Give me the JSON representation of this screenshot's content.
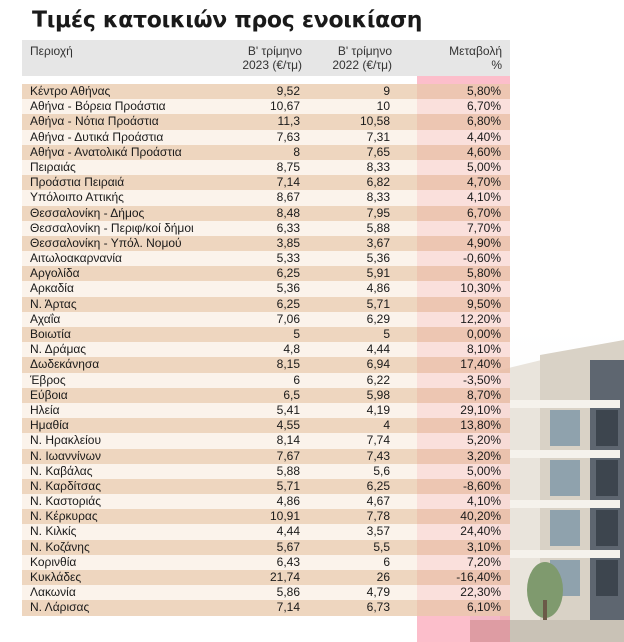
{
  "title": "Τιμές κατοικιών προς ενοικίαση",
  "headers": {
    "region": "Περιοχή",
    "q2023_line1": "Β' τρίμηνο",
    "q2023_line2": "2023 (€/τμ)",
    "q2022_line1": "Β' τρίμηνο",
    "q2022_line2": "2022 (€/τμ)",
    "change_line1": "Μεταβολή",
    "change_line2": "%"
  },
  "rows": [
    {
      "region": "Κέντρο Αθήνας",
      "q2023": "9,52",
      "q2022": "9",
      "change": "5,80%"
    },
    {
      "region": "Αθήνα - Βόρεια Προάστια",
      "q2023": "10,67",
      "q2022": "10",
      "change": "6,70%"
    },
    {
      "region": "Αθήνα - Νότια Προάστια",
      "q2023": "11,3",
      "q2022": "10,58",
      "change": "6,80%"
    },
    {
      "region": "Αθήνα - Δυτικά Προάστια",
      "q2023": "7,63",
      "q2022": "7,31",
      "change": "4,40%"
    },
    {
      "region": "Αθήνα - Ανατολικά Προάστια",
      "q2023": "8",
      "q2022": "7,65",
      "change": "4,60%"
    },
    {
      "region": "Πειραιάς",
      "q2023": "8,75",
      "q2022": "8,33",
      "change": "5,00%"
    },
    {
      "region": "Προάστια Πειραιά",
      "q2023": "7,14",
      "q2022": "6,82",
      "change": "4,70%"
    },
    {
      "region": "Υπόλοιπο Αττικής",
      "q2023": "8,67",
      "q2022": "8,33",
      "change": "4,10%"
    },
    {
      "region": "Θεσσαλονίκη - Δήμος",
      "q2023": "8,48",
      "q2022": "7,95",
      "change": "6,70%"
    },
    {
      "region": "Θεσσαλονίκη - Περιφ/κοί δήμοι",
      "q2023": "6,33",
      "q2022": "5,88",
      "change": "7,70%"
    },
    {
      "region": "Θεσσαλονίκη - Υπόλ. Νομού",
      "q2023": "3,85",
      "q2022": "3,67",
      "change": "4,90%"
    },
    {
      "region": "Αιτωλοακαρνανία",
      "q2023": "5,33",
      "q2022": "5,36",
      "change": "-0,60%"
    },
    {
      "region": "Αργολίδα",
      "q2023": "6,25",
      "q2022": "5,91",
      "change": "5,80%"
    },
    {
      "region": "Αρκαδία",
      "q2023": "5,36",
      "q2022": "4,86",
      "change": "10,30%"
    },
    {
      "region": "Ν. Άρτας",
      "q2023": "6,25",
      "q2022": "5,71",
      "change": "9,50%"
    },
    {
      "region": "Αχαΐα",
      "q2023": "7,06",
      "q2022": "6,29",
      "change": "12,20%"
    },
    {
      "region": "Βοιωτία",
      "q2023": "5",
      "q2022": "5",
      "change": "0,00%"
    },
    {
      "region": "Ν. Δράμας",
      "q2023": "4,8",
      "q2022": "4,44",
      "change": "8,10%"
    },
    {
      "region": "Δωδεκάνησα",
      "q2023": "8,15",
      "q2022": "6,94",
      "change": "17,40%"
    },
    {
      "region": "Έβρος",
      "q2023": "6",
      "q2022": "6,22",
      "change": "-3,50%"
    },
    {
      "region": "Εύβοια",
      "q2023": "6,5",
      "q2022": "5,98",
      "change": "8,70%"
    },
    {
      "region": "Ηλεία",
      "q2023": "5,41",
      "q2022": "4,19",
      "change": "29,10%"
    },
    {
      "region": "Ημαθία",
      "q2023": "4,55",
      "q2022": "4",
      "change": "13,80%"
    },
    {
      "region": "Ν. Ηρακλείου",
      "q2023": "8,14",
      "q2022": "7,74",
      "change": "5,20%"
    },
    {
      "region": "Ν. Ιωαννίνων",
      "q2023": "7,67",
      "q2022": "7,43",
      "change": "3,20%"
    },
    {
      "region": "Ν. Καβάλας",
      "q2023": "5,88",
      "q2022": "5,6",
      "change": "5,00%"
    },
    {
      "region": "Ν. Καρδίτσας",
      "q2023": "5,71",
      "q2022": "6,25",
      "change": "-8,60%"
    },
    {
      "region": "Ν. Καστοριάς",
      "q2023": "4,86",
      "q2022": "4,67",
      "change": "4,10%"
    },
    {
      "region": "Ν. Κέρκυρας",
      "q2023": "10,91",
      "q2022": "7,78",
      "change": "40,20%"
    },
    {
      "region": "Ν. Κιλκίς",
      "q2023": "4,44",
      "q2022": "3,57",
      "change": "24,40%"
    },
    {
      "region": "Ν. Κοζάνης",
      "q2023": "5,67",
      "q2022": "5,5",
      "change": "3,10%"
    },
    {
      "region": "Κορινθία",
      "q2023": "6,43",
      "q2022": "6",
      "change": "7,20%"
    },
    {
      "region": "Κυκλάδες",
      "q2023": "21,74",
      "q2022": "26",
      "change": "-16,40%"
    },
    {
      "region": "Λακωνία",
      "q2023": "5,86",
      "q2022": "4,79",
      "change": "22,30%"
    },
    {
      "region": "Ν. Λάρισας",
      "q2023": "7,14",
      "q2022": "6,73",
      "change": "6,10%"
    }
  ]
}
